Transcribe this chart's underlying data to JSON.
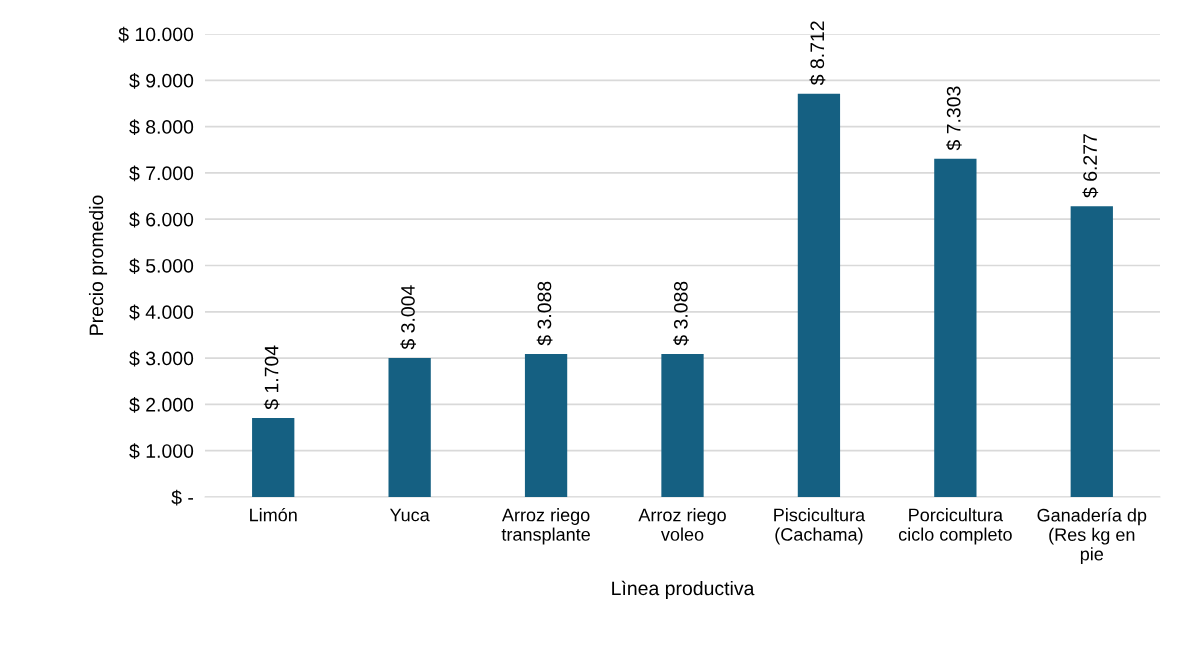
{
  "chart_data": {
    "type": "bar",
    "categories": [
      "Limón",
      "Yuca",
      "Arroz riego\ntransplante",
      "Arroz riego\nvoleo",
      "Piscicultura\n(Cachama)",
      "Porcicultura\nciclo completo",
      "Ganadería dp\n(Res kg en\npie"
    ],
    "values": [
      1704,
      3004,
      3088,
      3088,
      8712,
      7303,
      6277
    ],
    "value_labels": [
      "$ 1.704",
      "$ 3.004",
      "$ 3.088",
      "$ 3.088",
      "$ 8.712",
      "$ 7.303",
      "$ 6.277"
    ],
    "color": "#156082",
    "xlabel": "Lìnea productiva",
    "ylabel": "Precio promedio",
    "ylim": [
      0,
      10000
    ],
    "yticks": [
      {
        "value": 0,
        "label": "$ -"
      },
      {
        "value": 1000,
        "label": "$ 1.000"
      },
      {
        "value": 2000,
        "label": "$ 2.000"
      },
      {
        "value": 3000,
        "label": "$ 3.000"
      },
      {
        "value": 4000,
        "label": "$ 4.000"
      },
      {
        "value": 5000,
        "label": "$ 5.000"
      },
      {
        "value": 6000,
        "label": "$ 6.000"
      },
      {
        "value": 7000,
        "label": "$ 7.000"
      },
      {
        "value": 8000,
        "label": "$ 8.000"
      },
      {
        "value": 9000,
        "label": "$ 9.000"
      },
      {
        "value": 10000,
        "label": "$ 10.000"
      }
    ],
    "grid": "y",
    "legend": false
  }
}
